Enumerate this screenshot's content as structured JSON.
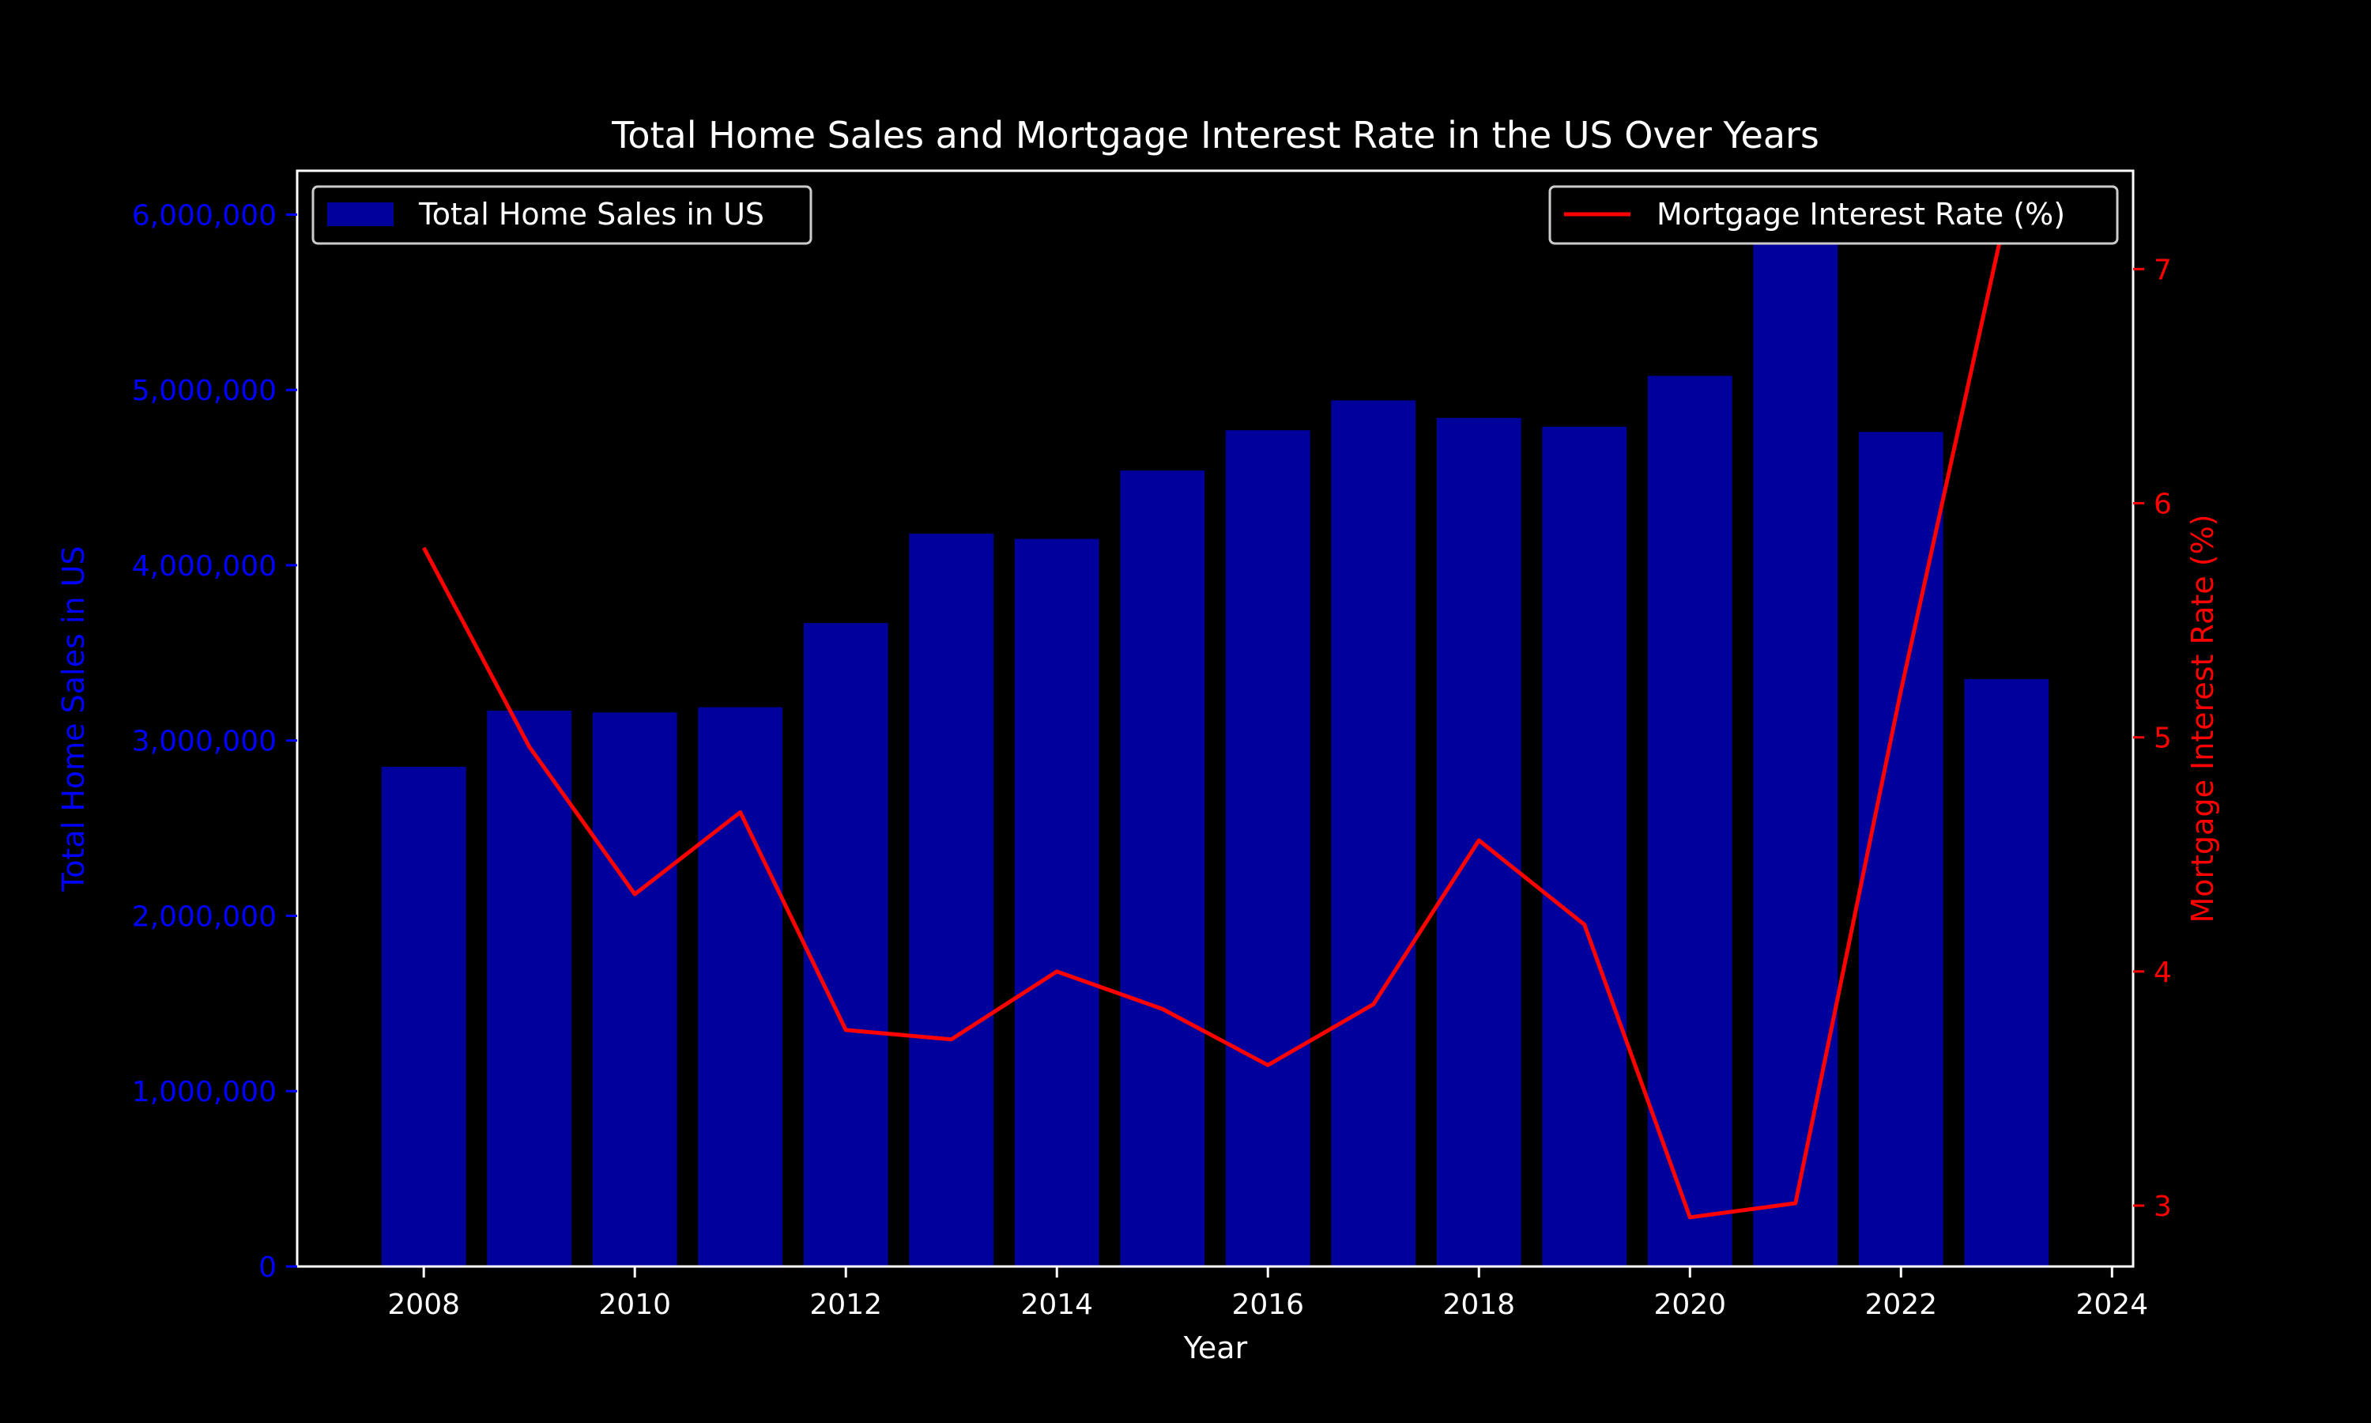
{
  "chart_data": {
    "type": "bar",
    "title": "Total Home Sales and Mortgage Interest Rate in the US Over Years",
    "xlabel": "Year",
    "ylabel": "Total Home Sales in US",
    "y2label": "Mortgage Interest Rate (%)",
    "x_ticks": [
      2008,
      2010,
      2012,
      2014,
      2016,
      2018,
      2020,
      2022,
      2024
    ],
    "xlim": [
      2006.8,
      2024.2
    ],
    "ylim": [
      0,
      6250000
    ],
    "y_ticks": [
      0,
      1000000,
      2000000,
      3000000,
      4000000,
      5000000,
      6000000
    ],
    "y_tick_labels": [
      "0",
      "1,000,000",
      "2,000,000",
      "3,000,000",
      "4,000,000",
      "5,000,000",
      "6,000,000"
    ],
    "y2lim": [
      2.74,
      7.42
    ],
    "y2_ticks": [
      3,
      4,
      5,
      6,
      7
    ],
    "categories": [
      2008,
      2009,
      2010,
      2011,
      2012,
      2013,
      2014,
      2015,
      2016,
      2017,
      2018,
      2019,
      2020,
      2021,
      2022,
      2023
    ],
    "series": [
      {
        "name": "Total Home Sales in US",
        "type": "bar",
        "axis": "left",
        "color": "#00009b",
        "values": [
          2850000,
          3170000,
          3160000,
          3190000,
          3670000,
          4180000,
          4150000,
          4540000,
          4770000,
          4940000,
          4840000,
          4790000,
          5080000,
          6000000,
          4760000,
          3350000
        ]
      },
      {
        "name": "Mortgage Interest Rate (%)",
        "type": "line",
        "axis": "right",
        "color": "#ff0000",
        "values": [
          5.81,
          4.96,
          4.33,
          4.68,
          3.75,
          3.71,
          4.0,
          3.84,
          3.6,
          3.86,
          4.56,
          4.2,
          2.95,
          3.01,
          5.2,
          7.25
        ]
      }
    ],
    "legend": {
      "left_placement": "top-left",
      "right_placement": "top-right"
    },
    "colors": {
      "background": "#000000",
      "foreground": "#ffffff",
      "left_axis": "#0000ff",
      "right_axis": "#ff0000"
    },
    "grid": false
  }
}
